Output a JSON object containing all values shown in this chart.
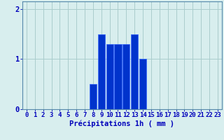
{
  "hours": [
    0,
    1,
    2,
    3,
    4,
    5,
    6,
    7,
    8,
    9,
    10,
    11,
    12,
    13,
    14,
    15,
    16,
    17,
    18,
    19,
    20,
    21,
    22,
    23
  ],
  "values": [
    0,
    0,
    0,
    0,
    0,
    0,
    0,
    0,
    0.5,
    1.5,
    1.3,
    1.3,
    1.3,
    1.5,
    1.0,
    0,
    0,
    0,
    0,
    0,
    0,
    0,
    0,
    0
  ],
  "bar_color": "#0033cc",
  "bar_edge_color": "#3366ff",
  "background_color": "#d8eeee",
  "grid_color": "#aacccc",
  "axis_color": "#5588aa",
  "text_color": "#0000bb",
  "xlabel": "Précipitations 1h ( mm )",
  "ylim": [
    0,
    2.15
  ],
  "yticks": [
    0,
    1,
    2
  ],
  "xlim": [
    -0.5,
    23.5
  ],
  "label_fontsize": 7.5,
  "tick_fontsize": 6.5
}
